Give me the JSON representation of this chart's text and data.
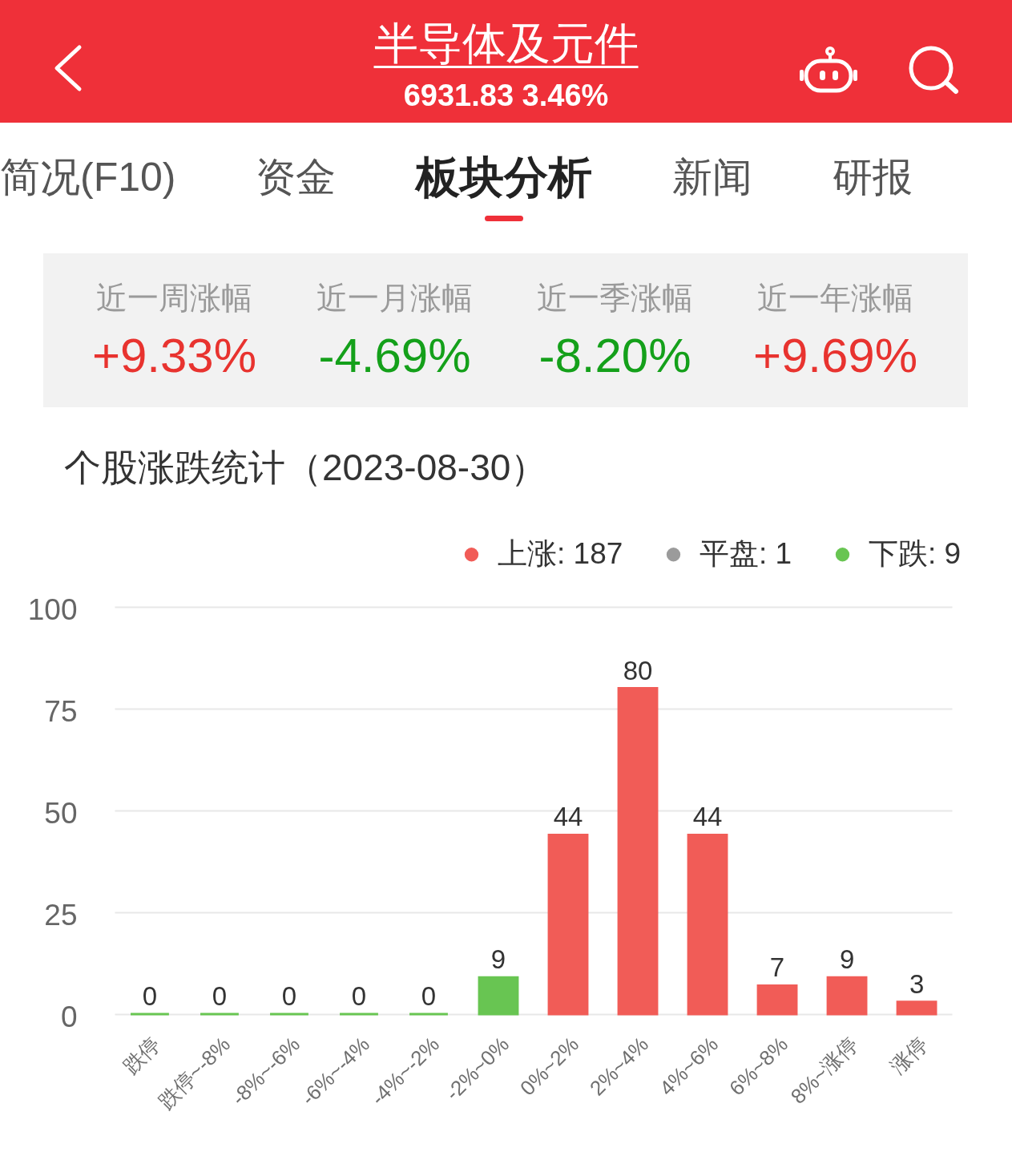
{
  "chart_data": [
    {
      "type": "other",
      "title": "半导体及元件",
      "subtitle": "6931.83 3.46%",
      "annotations": [
        "简况(F10)",
        "资金",
        "板块分析",
        "新闻",
        "研报"
      ]
    },
    {
      "type": "other",
      "categories": [
        "近一周涨幅",
        "近一月涨幅",
        "近一季涨幅",
        "近一年涨幅"
      ],
      "value_labels": [
        "+9.33%",
        "-4.69%",
        "-8.20%",
        "+9.69%"
      ],
      "colors": [
        "#e8332f",
        "#14a01a",
        "#14a01a",
        "#e8332f"
      ]
    },
    {
      "type": "bar",
      "title": "个股涨跌统计（2023-08-30）",
      "categories": [
        "跌停",
        "跌停~-8%",
        "-8%~-6%",
        "-6%~-4%",
        "-4%~-2%",
        "-2%~0%",
        "0%~2%",
        "2%~4%",
        "4%~6%",
        "6%~8%",
        "8%~涨停",
        "涨停"
      ],
      "series": [
        {
          "name": "上涨: 187",
          "color": "#f15c57",
          "values": [
            null,
            null,
            null,
            null,
            null,
            null,
            44,
            80,
            44,
            7,
            9,
            3
          ]
        },
        {
          "name": "平盘: 1",
          "color": "#9b9b9b",
          "values": [
            null,
            null,
            null,
            null,
            null,
            null,
            null,
            null,
            null,
            null,
            null,
            null
          ]
        },
        {
          "name": "下跌: 9",
          "color": "#68c552",
          "values": [
            0,
            0,
            0,
            0,
            0,
            9,
            null,
            null,
            null,
            null,
            null,
            null
          ]
        }
      ],
      "ylim": [
        0,
        100
      ],
      "yticks": [
        0,
        25,
        50,
        75,
        100
      ],
      "grid": "y",
      "legend": "top right",
      "data_labels": true
    }
  ]
}
